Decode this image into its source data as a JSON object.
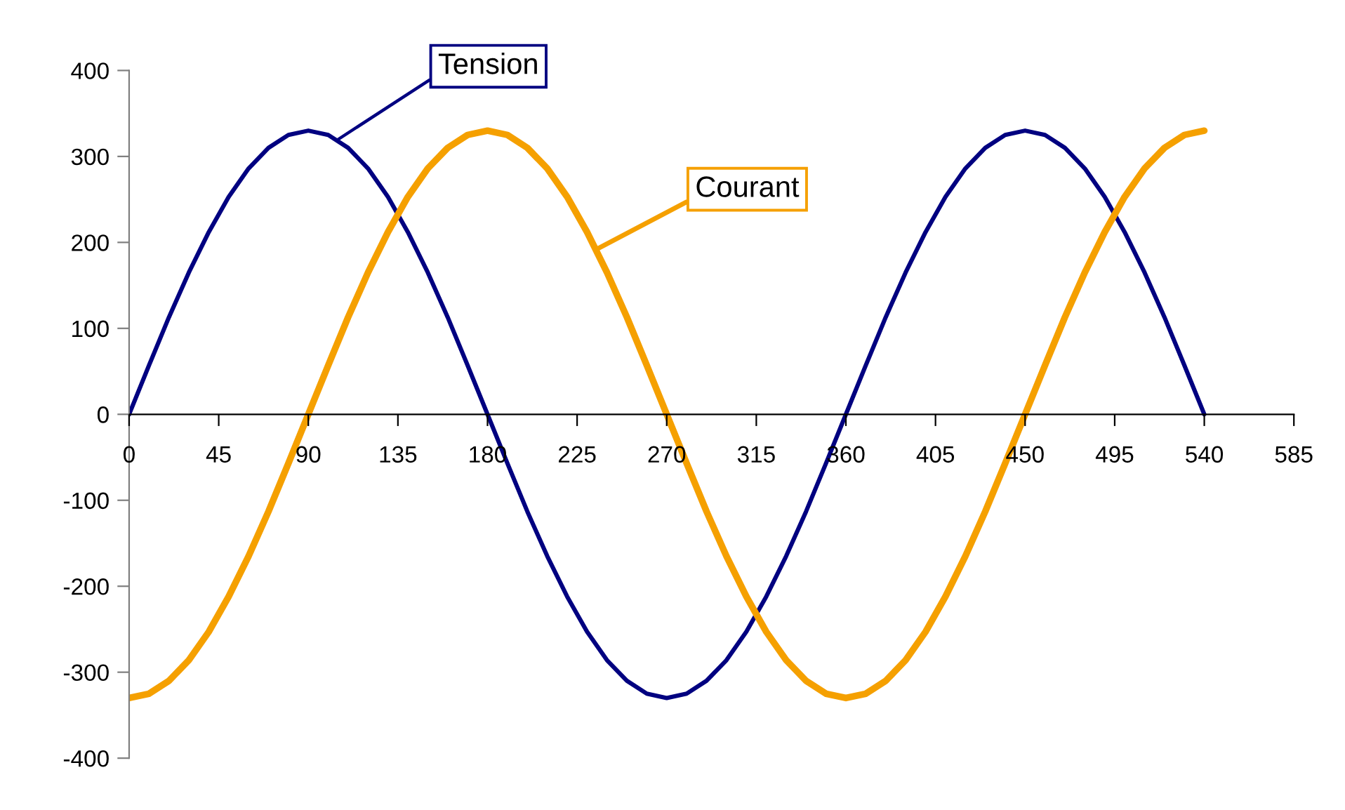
{
  "chart_data": {
    "type": "line",
    "x": [
      0,
      10,
      20,
      30,
      40,
      50,
      60,
      70,
      80,
      90,
      100,
      110,
      120,
      130,
      140,
      150,
      160,
      170,
      180,
      190,
      200,
      210,
      220,
      230,
      240,
      250,
      260,
      270,
      280,
      290,
      300,
      310,
      320,
      330,
      340,
      350,
      360,
      370,
      380,
      390,
      400,
      410,
      420,
      430,
      440,
      450,
      460,
      470,
      480,
      490,
      500,
      510,
      520,
      530,
      540
    ],
    "series": [
      {
        "name": "Tension",
        "color": "#000080",
        "values": [
          0,
          57,
          113,
          165,
          212,
          253,
          286,
          310,
          325,
          330,
          325,
          310,
          286,
          253,
          212,
          165,
          113,
          57,
          0,
          -57,
          -113,
          -165,
          -212,
          -253,
          -286,
          -310,
          -325,
          -330,
          -325,
          -310,
          -286,
          -253,
          -212,
          -165,
          -113,
          -57,
          0,
          57,
          113,
          165,
          212,
          253,
          286,
          310,
          325,
          330,
          325,
          310,
          286,
          253,
          212,
          165,
          113,
          57,
          0
        ]
      },
      {
        "name": "Courant",
        "color": "#f5a000",
        "values": [
          -330,
          -325,
          -310,
          -286,
          -253,
          -212,
          -165,
          -113,
          -57,
          0,
          57,
          113,
          165,
          212,
          253,
          286,
          310,
          325,
          330,
          325,
          310,
          286,
          253,
          212,
          165,
          113,
          57,
          0,
          -57,
          -113,
          -165,
          -212,
          -253,
          -286,
          -310,
          -325,
          -330,
          -325,
          -310,
          -286,
          -253,
          -212,
          -165,
          -113,
          -57,
          0,
          57,
          113,
          165,
          212,
          253,
          286,
          310,
          325,
          330
        ]
      }
    ],
    "xlim": [
      0,
      585
    ],
    "xticks": [
      0,
      45,
      90,
      135,
      180,
      225,
      270,
      315,
      360,
      405,
      450,
      495,
      540,
      585
    ],
    "ylim": [
      -400,
      400
    ],
    "yticks": [
      -400,
      -300,
      -200,
      -100,
      0,
      100,
      200,
      300,
      400
    ]
  }
}
